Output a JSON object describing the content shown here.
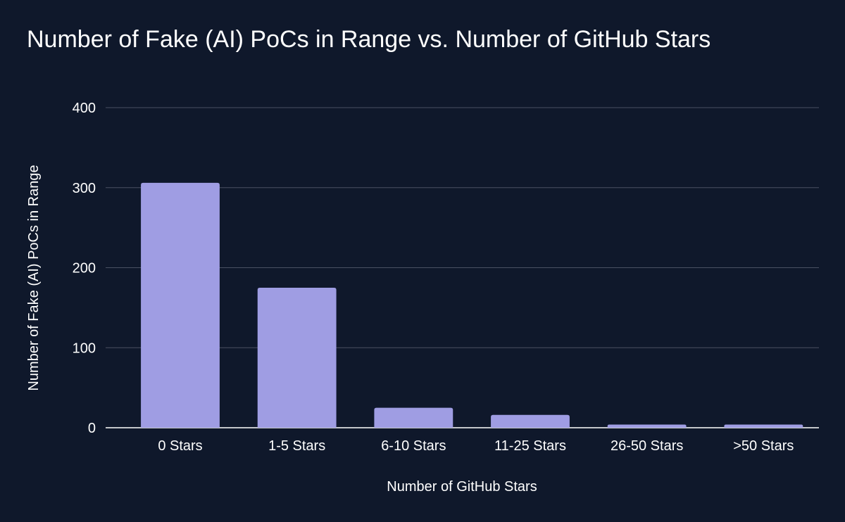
{
  "chart_data": {
    "type": "bar",
    "title": "Number of Fake (AI) PoCs in Range vs. Number of GitHub Stars",
    "xlabel": "Number of GitHub Stars",
    "ylabel": "Number of Fake (AI) PoCs in Range",
    "categories": [
      "0 Stars",
      "1-5 Stars",
      "6-10 Stars",
      "11-25 Stars",
      "26-50 Stars",
      ">50 Stars"
    ],
    "values": [
      306,
      175,
      25,
      16,
      4,
      4
    ],
    "ylim": [
      0,
      400
    ],
    "yticks": [
      0,
      100,
      200,
      300,
      400
    ],
    "grid": true,
    "legend": "none",
    "colors": {
      "background": "#0f182b",
      "bar": "#9f9de3",
      "grid": "#4a5163",
      "text": "#ffffff"
    }
  }
}
